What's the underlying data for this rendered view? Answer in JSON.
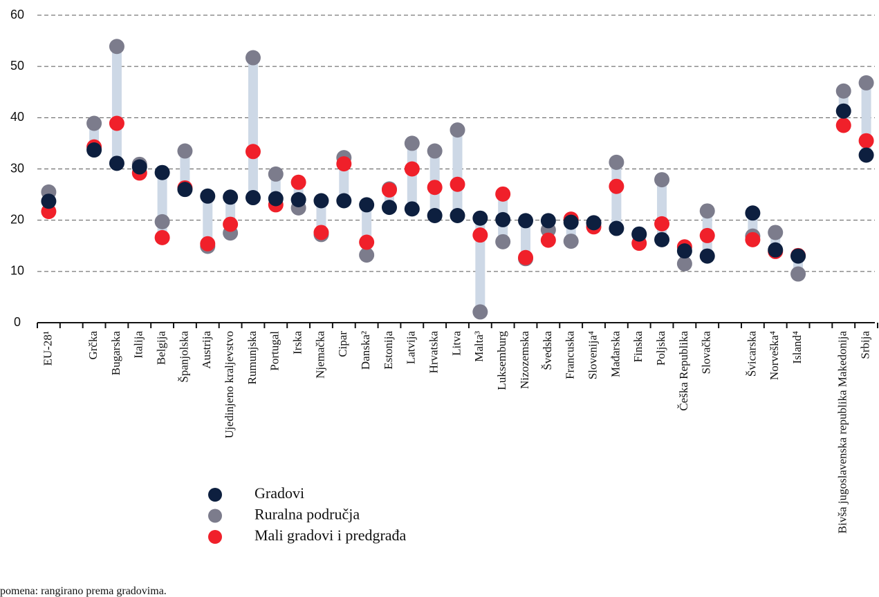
{
  "chart_data": {
    "type": "dot",
    "categories": [
      "EU-28¹",
      null,
      "Grčka",
      "Bugarska",
      "Italija",
      "Belgija",
      "Španjolska",
      "Austrija",
      "Ujedinjeno kraljevstvo",
      "Rumunjska",
      "Portugal",
      "Irska",
      "Njemačka",
      "Cipar",
      "Danska²",
      "Estonija",
      "Latvija",
      "Hrvatska",
      "Litva",
      "Malta³",
      "Luksemburg",
      "Nizozemska",
      "Švedska",
      "Francuska",
      "Slovenija⁴",
      "Mađarska",
      "Finska",
      "Poljska",
      "Češka Republika",
      "Slovačka",
      null,
      "Švicarska",
      "Norveška⁴",
      "Island⁴",
      null,
      "Bivša jugoslavenska republika Makedonija",
      "Srbija"
    ],
    "series": [
      {
        "name": "Ruralna područja",
        "color": "#7c7c8c",
        "values": [
          25.5,
          null,
          38.9,
          53.9,
          30.9,
          19.7,
          33.5,
          14.9,
          17.5,
          51.7,
          29.0,
          22.4,
          17.2,
          32.2,
          13.2,
          26.1,
          35.0,
          33.5,
          37.6,
          2.1,
          15.8,
          12.5,
          18.1,
          15.9,
          19.4,
          31.3,
          17.2,
          27.9,
          11.5,
          21.8,
          null,
          16.9,
          17.6,
          9.5,
          null,
          45.2,
          46.8
        ]
      },
      {
        "name": "Mali gradovi i predgrađa",
        "color": "#f0202a",
        "values": [
          21.7,
          null,
          34.3,
          38.9,
          29.2,
          16.6,
          26.3,
          15.4,
          19.2,
          33.4,
          23.0,
          27.4,
          17.6,
          31.0,
          15.7,
          25.9,
          30.0,
          26.4,
          27.0,
          17.1,
          25.1,
          12.7,
          16.1,
          20.2,
          18.7,
          26.6,
          15.5,
          19.3,
          14.8,
          17.0,
          null,
          16.2,
          13.9,
          13.1,
          null,
          38.5,
          35.5
        ]
      },
      {
        "name": "Gradovi",
        "color": "#0d1f3f",
        "values": [
          23.7,
          null,
          33.7,
          31.1,
          30.4,
          29.3,
          26.0,
          24.7,
          24.5,
          24.4,
          24.2,
          24.0,
          23.8,
          23.8,
          23.0,
          22.5,
          22.2,
          20.9,
          20.9,
          20.4,
          20.1,
          19.9,
          19.9,
          19.6,
          19.5,
          18.4,
          17.3,
          16.2,
          14.0,
          13.0,
          null,
          21.4,
          14.2,
          13.0,
          null,
          41.3,
          32.7
        ]
      }
    ],
    "legend_order": [
      2,
      0,
      1
    ],
    "connector_color": "#cdd8e6",
    "ylim": [
      0,
      60
    ],
    "yticks": [
      0,
      10,
      20,
      30,
      40,
      50,
      60
    ],
    "grid": true,
    "note": "pomena: rangirano prema gradovima."
  }
}
